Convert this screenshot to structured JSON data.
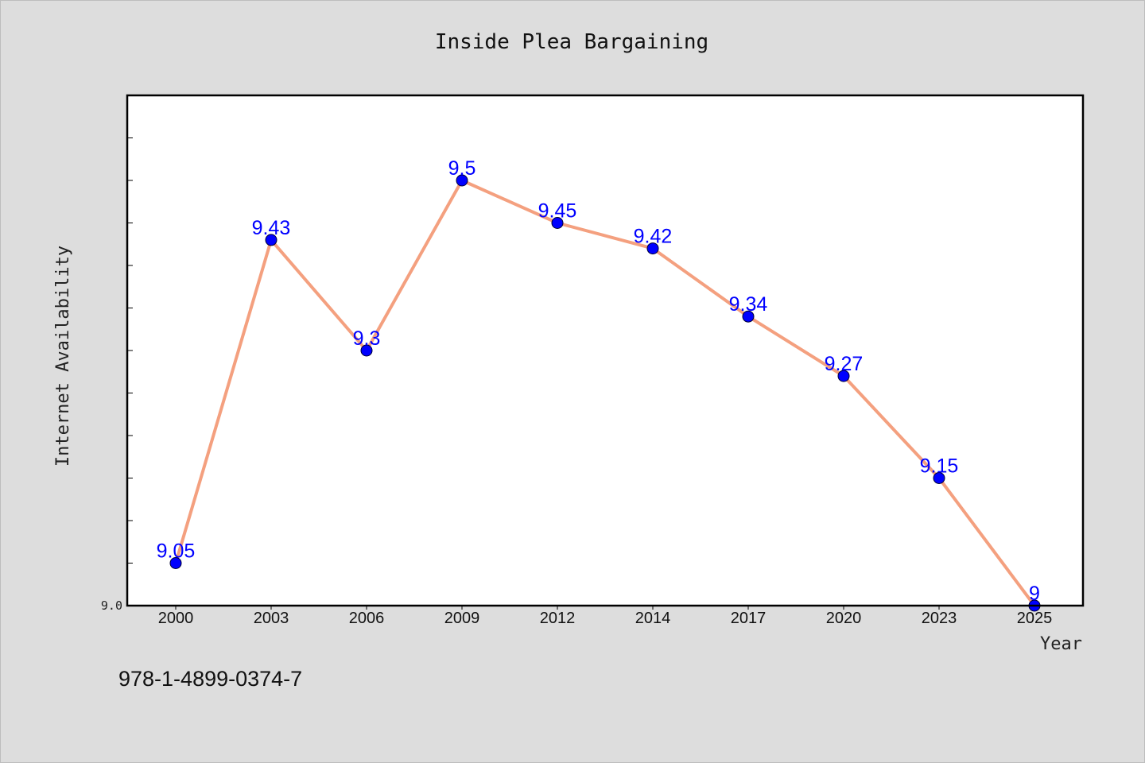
{
  "chart_data": {
    "type": "line",
    "title": "Inside Plea Bargaining",
    "xlabel": "Year",
    "ylabel": "Internet Availability",
    "categories": [
      "2000",
      "2003",
      "2006",
      "2009",
      "2012",
      "2014",
      "2017",
      "2020",
      "2023",
      "2025"
    ],
    "series": [
      {
        "values": [
          9.05,
          9.43,
          9.3,
          9.5,
          9.45,
          9.42,
          9.34,
          9.27,
          9.15,
          9.0
        ],
        "data_labels": [
          "9.05",
          "9.43",
          "9.3",
          "9.5",
          "9.45",
          "9.42",
          "9.34",
          "9.27",
          "9.15",
          "9"
        ],
        "line_color": "#f4a07f",
        "marker_color": "#0000ff"
      }
    ],
    "ylim": [
      9.0,
      9.6
    ],
    "y_tick_label": "9.0",
    "y_minor_tick_step": 0.05,
    "grid": false,
    "legend": "none"
  },
  "footnote": "978-1-4899-0374-7"
}
